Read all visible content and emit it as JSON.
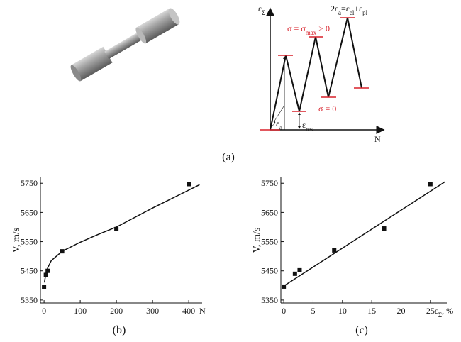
{
  "figure": {
    "diagram": {
      "y_axis_label": [
        "ε",
        "Σ"
      ],
      "x_axis_label": "N",
      "amplitude_relation": [
        "2ε",
        "a",
        "=ε",
        "el",
        "+ε",
        "pl"
      ],
      "stress_max": [
        "σ = σ",
        "max",
        " > 0"
      ],
      "stress_zero": "σ = 0",
      "amplitude": [
        "2ε",
        "a"
      ],
      "residual": [
        "ε",
        "res"
      ]
    },
    "captions": [
      "(a)",
      "(b)",
      "(c)"
    ]
  },
  "chart_data": [
    {
      "type": "scatter",
      "ylabel": "V, m/s",
      "xlabel": [
        "N"
      ],
      "xlim": [
        -10,
        437
      ],
      "ylim": [
        5340,
        5770
      ],
      "xticks": [
        0,
        100,
        200,
        300,
        400
      ],
      "yticks": [
        5350,
        5450,
        5550,
        5650,
        5750
      ],
      "series": [
        {
          "style": "markers",
          "color": "#111111",
          "x": [
            0,
            5,
            10,
            50,
            200,
            400
          ],
          "values": [
            5395,
            5436,
            5450,
            5517,
            5593,
            5747
          ]
        },
        {
          "style": "line",
          "color": "#111111",
          "x": [
            1,
            5,
            10,
            20,
            50,
            100,
            150,
            200,
            300,
            430
          ],
          "values": [
            5410,
            5440,
            5460,
            5485,
            5517,
            5548,
            5575,
            5600,
            5665,
            5745
          ]
        }
      ]
    },
    {
      "type": "scatter",
      "ylabel": "V, m/s",
      "xlabel": [
        "ε",
        "Σ",
        ", %"
      ],
      "xlim": [
        -0.5,
        27.8
      ],
      "ylim": [
        5340,
        5770
      ],
      "xticks": [
        0,
        5,
        10,
        15,
        20,
        25
      ],
      "yticks": [
        5350,
        5450,
        5550,
        5650,
        5750
      ],
      "series": [
        {
          "style": "markers",
          "color": "#111111",
          "x": [
            0,
            1.9,
            2.7,
            8.6,
            17.1,
            25
          ],
          "values": [
            5396,
            5440,
            5452,
            5520,
            5595,
            5747
          ]
        },
        {
          "style": "line",
          "color": "#111111",
          "x": [
            0,
            27.5
          ],
          "values": [
            5398,
            5755
          ]
        }
      ]
    }
  ]
}
